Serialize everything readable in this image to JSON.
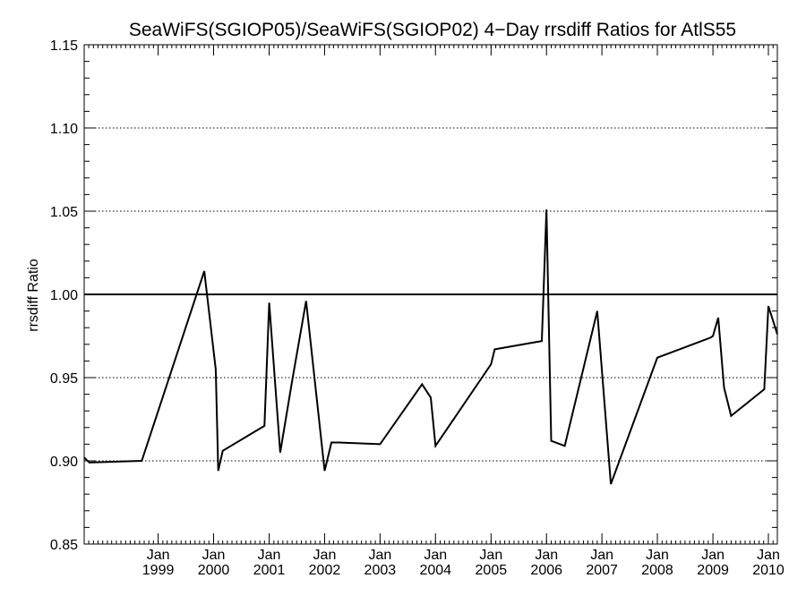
{
  "chart_data": {
    "type": "line",
    "title": "SeaWiFS(SGIOP05)/SeaWiFS(SGIOP02) 4−Day rrsdiff Ratios for AtlS55",
    "ylabel": "rrsdiff Ratio",
    "xlabel": "",
    "ylim": [
      0.85,
      1.15
    ],
    "xlim": [
      "1997-09-01",
      "2010-03-01"
    ],
    "y_ticks": [
      "0.85",
      "0.90",
      "0.95",
      "1.00",
      "1.05",
      "1.10",
      "1.15"
    ],
    "y_tick_values": [
      0.85,
      0.9,
      0.95,
      1.0,
      1.05,
      1.1,
      1.15
    ],
    "x_ticks": [
      {
        "date": "1999-01-01",
        "line1": "Jan",
        "line2": "1999"
      },
      {
        "date": "2000-01-01",
        "line1": "Jan",
        "line2": "2000"
      },
      {
        "date": "2001-01-01",
        "line1": "Jan",
        "line2": "2001"
      },
      {
        "date": "2002-01-01",
        "line1": "Jan",
        "line2": "2002"
      },
      {
        "date": "2003-01-01",
        "line1": "Jan",
        "line2": "2003"
      },
      {
        "date": "2004-01-01",
        "line1": "Jan",
        "line2": "2004"
      },
      {
        "date": "2005-01-01",
        "line1": "Jan",
        "line2": "2005"
      },
      {
        "date": "2006-01-01",
        "line1": "Jan",
        "line2": "2006"
      },
      {
        "date": "2007-01-01",
        "line1": "Jan",
        "line2": "2007"
      },
      {
        "date": "2008-01-01",
        "line1": "Jan",
        "line2": "2008"
      },
      {
        "date": "2009-01-01",
        "line1": "Jan",
        "line2": "2009"
      },
      {
        "date": "2010-01-01",
        "line1": "Jan",
        "line2": "2010"
      }
    ],
    "grid": "horizontal dotted",
    "reference_line": 1.0,
    "series": [
      {
        "x": [
          "1997-09-01",
          "1997-10-05",
          "1998-09-15",
          "1999-11-01",
          "2000-01-15",
          "2000-02-01",
          "2000-03-01",
          "2000-12-01",
          "2001-01-01",
          "2001-03-15",
          "2001-06-01",
          "2001-09-01",
          "2002-01-01",
          "2002-02-15",
          "2002-04-01",
          "2003-01-01",
          "2003-10-05",
          "2003-12-01",
          "2004-01-01",
          "2005-01-01",
          "2005-01-25",
          "2005-12-01",
          "2006-01-01",
          "2006-02-01",
          "2006-05-01",
          "2006-12-01",
          "2007-03-01",
          "2008-01-01",
          "2008-12-15",
          "2009-01-01",
          "2009-02-05",
          "2009-03-15",
          "2009-05-01",
          "2009-12-05",
          "2010-01-01",
          "2010-03-01"
        ],
        "y": [
          0.902,
          0.899,
          0.9,
          1.014,
          0.955,
          0.894,
          0.906,
          0.921,
          0.995,
          0.905,
          0.948,
          0.996,
          0.894,
          0.911,
          0.911,
          0.91,
          0.946,
          0.938,
          0.909,
          0.958,
          0.967,
          0.972,
          1.051,
          0.912,
          0.909,
          0.99,
          0.886,
          0.962,
          0.974,
          0.975,
          0.986,
          0.944,
          0.927,
          0.943,
          0.993,
          0.976
        ]
      }
    ]
  }
}
